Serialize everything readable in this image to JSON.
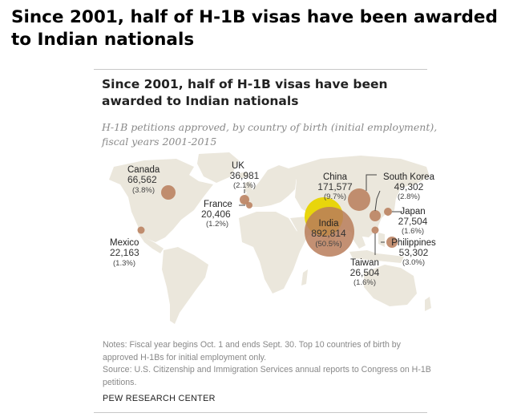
{
  "page_title": "Since 2001, half of H-1B visas have been awarded to Indian nationals",
  "chart_title": "Since 2001, half of H-1B visas have been awarded to Indian nationals",
  "subtitle": "H-1B petitions approved, by country of birth (initial employment), fiscal years 2001-2015",
  "notes": [
    "Notes: Fiscal year begins Oct. 1 and ends Sept. 30. Top 10 countries of birth by approved H-1Bs for initial employment only.",
    "Source: U.S. Citizenship and Immigration Services annual reports to Congress on H-1B petitions."
  ],
  "source_org": "PEW RESEARCH CENTER",
  "colors": {
    "land": "#ebe7dc",
    "bubble": "#b87c5a",
    "highlight": "#e8d400",
    "leader": "#444444"
  },
  "countries": [
    {
      "name": "India",
      "value": "892,814",
      "pct": "(50.5%)",
      "highlight": true
    },
    {
      "name": "China",
      "value": "171,577",
      "pct": "(9.7%)",
      "highlight": false
    },
    {
      "name": "Canada",
      "value": "66,562",
      "pct": "(3.8%)",
      "highlight": false
    },
    {
      "name": "Philippines",
      "value": "53,302",
      "pct": "(3.0%)",
      "highlight": false
    },
    {
      "name": "South Korea",
      "value": "49,302",
      "pct": "(2.8%)",
      "highlight": false
    },
    {
      "name": "UK",
      "value": "36,981",
      "pct": "(2.1%)",
      "highlight": false
    },
    {
      "name": "Japan",
      "value": "27,504",
      "pct": "(1.6%)",
      "highlight": false
    },
    {
      "name": "Taiwan",
      "value": "26,504",
      "pct": "(1.6%)",
      "highlight": false
    },
    {
      "name": "Mexico",
      "value": "22,163",
      "pct": "(1.3%)",
      "highlight": false
    },
    {
      "name": "France",
      "value": "20,406",
      "pct": "(1.2%)",
      "highlight": false
    }
  ]
}
